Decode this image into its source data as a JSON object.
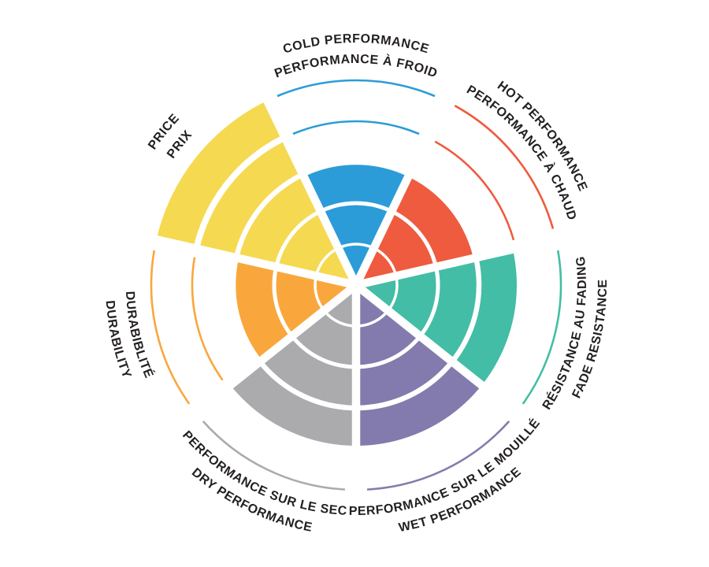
{
  "chart_data": {
    "type": "pie",
    "variant": "radial-rating-wheel",
    "title": "",
    "levels": 5,
    "max_level": 5,
    "background": "#FFFFFF",
    "separator_color": "#FFFFFF",
    "label_color": "#231F20",
    "legend_position": "around-circle",
    "grid": "concentric-rings",
    "segments": [
      {
        "id": "cold",
        "label_line1": "COLD PERFORMANCE",
        "label_line2": "PERFORMANCE À FROID",
        "value": 3,
        "color": "#2B9CD8",
        "orientation": "top"
      },
      {
        "id": "hot",
        "label_line1": "HOT PERFORMANCE",
        "label_line2": "PERFORMANCE À CHAUD",
        "value": 3,
        "color": "#EE5B3F",
        "orientation": "top"
      },
      {
        "id": "fade",
        "label_line1": "RÉSISTANCE AU FADING",
        "label_line2": "FADE RESISTANCE",
        "value": 4,
        "color": "#43BDA6",
        "orientation": "bottom"
      },
      {
        "id": "wet",
        "label_line1": "PERFORMANCE SUR LE MOUILLÉ",
        "label_line2": "WET PERFORMANCE",
        "value": 4,
        "color": "#837BAD",
        "orientation": "bottom"
      },
      {
        "id": "dry",
        "label_line1": "PERFORMANCE SUR LE SEC",
        "label_line2": "DRY PERFORMANCE",
        "value": 4,
        "color": "#ABABAD",
        "orientation": "bottom"
      },
      {
        "id": "durability",
        "label_line1": "DURABIBLITÉ",
        "label_line2": "DURABILITY",
        "value": 3,
        "color": "#F9A73D",
        "orientation": "bottom"
      },
      {
        "id": "price",
        "label_line1": "PRICE",
        "label_line2": "PRIX",
        "value": 5,
        "color": "#F5D950",
        "orientation": "top"
      }
    ]
  }
}
